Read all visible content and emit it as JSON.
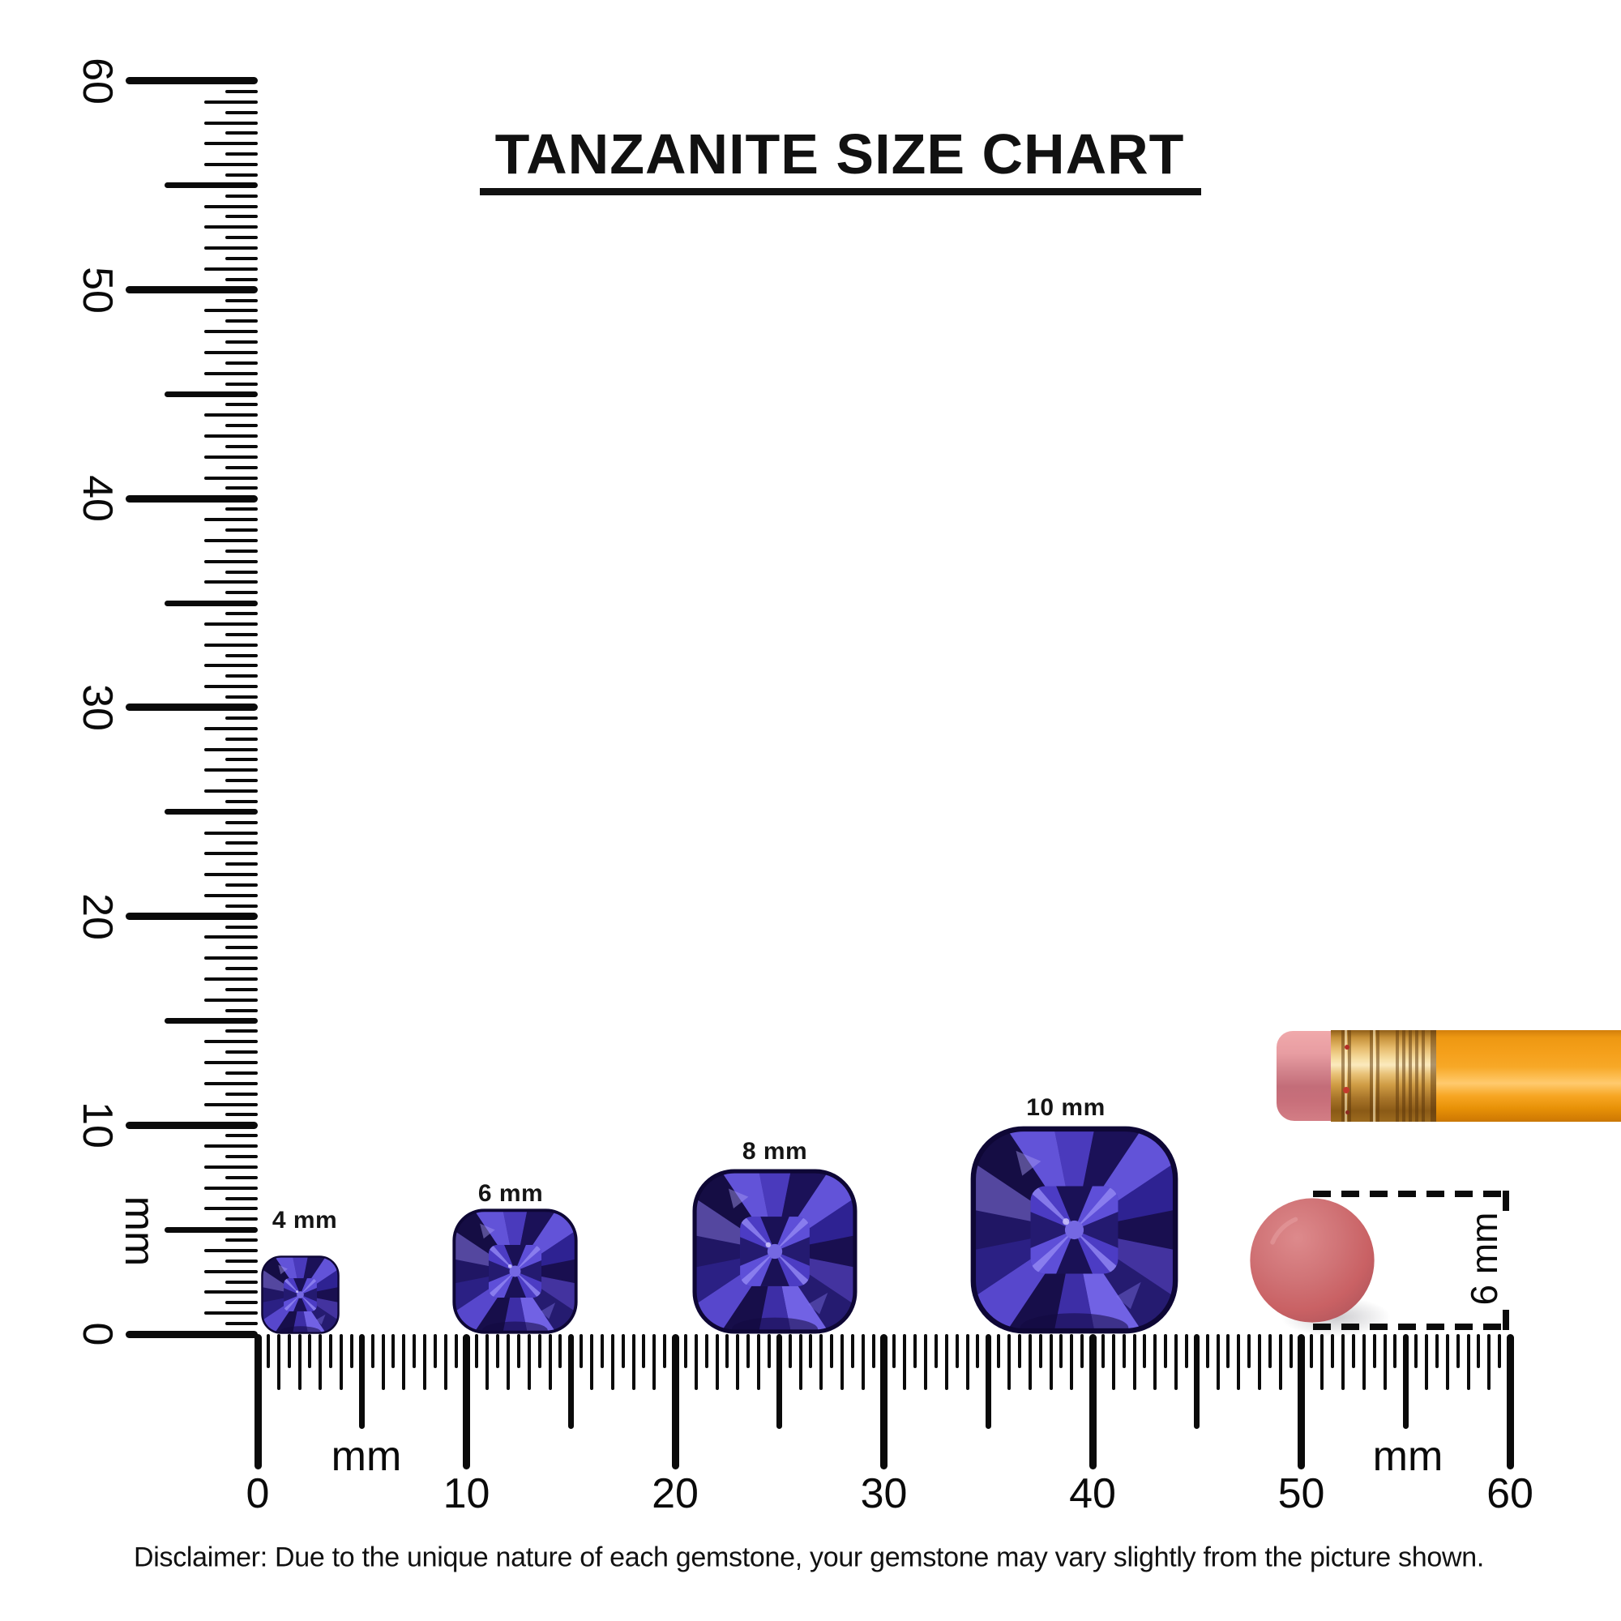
{
  "title": {
    "text": "TANZANITE SIZE CHART"
  },
  "rulers": {
    "vertical": {
      "unit": "mm",
      "range_mm": [
        0,
        60
      ],
      "major_labels": [
        "0",
        "10",
        "20",
        "30",
        "40",
        "50",
        "60"
      ]
    },
    "horizontal": {
      "unit_left": "mm",
      "unit_right": "mm",
      "range_mm": [
        0,
        60
      ],
      "major_labels": [
        "0",
        "10",
        "20",
        "30",
        "40",
        "50",
        "60"
      ]
    }
  },
  "gems": [
    {
      "label": "4 mm",
      "size_mm": 4
    },
    {
      "label": "6 mm",
      "size_mm": 6
    },
    {
      "label": "8 mm",
      "size_mm": 8
    },
    {
      "label": "10 mm",
      "size_mm": 10
    }
  ],
  "eraser": {
    "annotation": "6 mm",
    "diameter_mm": 6
  },
  "pencil": {
    "parts": [
      "eraser",
      "ferrule",
      "body"
    ]
  },
  "disclaimer": {
    "text": "Disclaimer: Due to the unique nature of each gemstone, your gemstone may vary slightly from the picture shown."
  },
  "colors": {
    "gem_base": "#2a1e7e",
    "gem_dark": "#170e4a",
    "gem_light": "#7162e4",
    "eraser_pink": "#cb686c",
    "pencil_orange": "#f5a01b",
    "ferrule_gold": "#e7bd6e",
    "ink": "#0a0a0a"
  }
}
